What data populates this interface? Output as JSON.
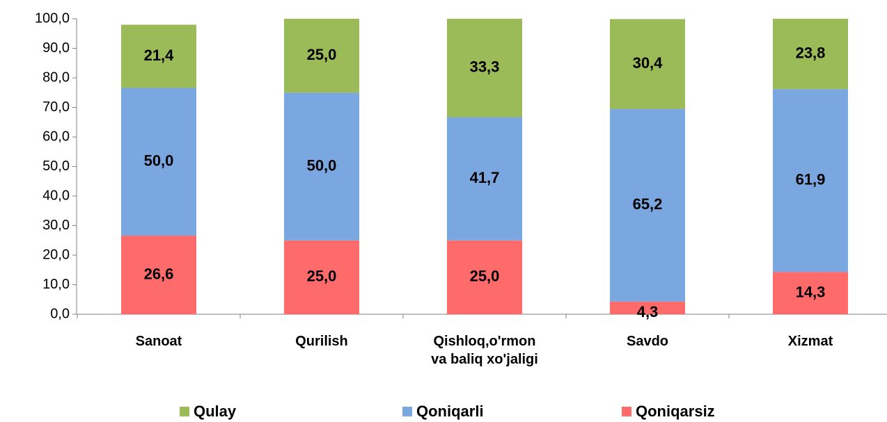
{
  "chart_data": {
    "type": "stacked_bar",
    "categories": [
      "Sanoat",
      "Qurilish",
      "Qishloq,o'rmon\nva baliq xo'jaligi",
      "Savdo",
      "Xizmat"
    ],
    "series": [
      {
        "name": "Qoniqarsiz",
        "color": "#ff6b6b",
        "values": [
          26.6,
          25,
          25,
          4.3,
          14.3
        ],
        "value_labels": [
          "26,6",
          "25,0",
          "25,0",
          "4,3",
          "14,3"
        ]
      },
      {
        "name": "Qoniqarli",
        "color": "#7ba7e1",
        "values": [
          50,
          50,
          41.7,
          65.2,
          61.9
        ],
        "value_labels": [
          "50,0",
          "50,0",
          "41,7",
          "65,2",
          "61,9"
        ]
      },
      {
        "name": "Qulay",
        "color": "#9bbb59",
        "values": [
          21.4,
          25,
          33.3,
          30.4,
          23.8
        ],
        "value_labels": [
          "21,4",
          "25,0",
          "33,3",
          "30,4",
          "23,8"
        ]
      }
    ],
    "ylim": [
      0,
      100
    ],
    "yticks": [
      {
        "value": 0,
        "label": "0,0"
      },
      {
        "value": 10,
        "label": "10,0"
      },
      {
        "value": 20,
        "label": "20,0"
      },
      {
        "value": 30,
        "label": "30,0"
      },
      {
        "value": 40,
        "label": "40,0"
      },
      {
        "value": 50,
        "label": "50,0"
      },
      {
        "value": 60,
        "label": "60,0"
      },
      {
        "value": 70,
        "label": "70,0"
      },
      {
        "value": 80,
        "label": "80,0"
      },
      {
        "value": 90,
        "label": "90,0"
      },
      {
        "value": 100,
        "label": "100,0"
      }
    ],
    "legend": "bottom"
  }
}
